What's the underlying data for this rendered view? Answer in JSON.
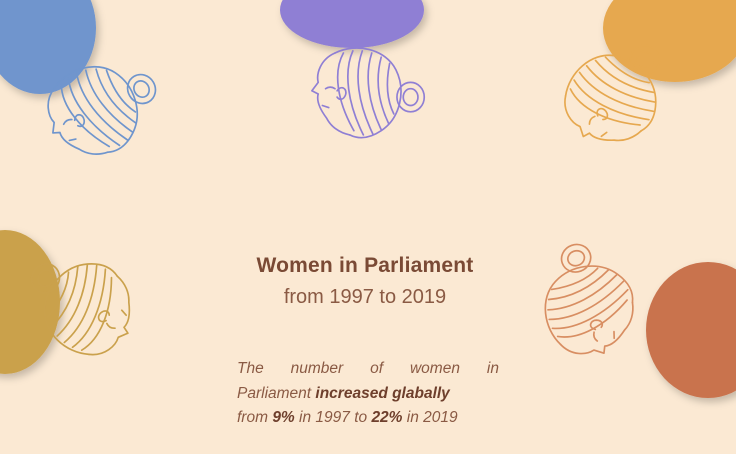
{
  "title": "Women in Parliament",
  "subtitle": "from 1997 to 2019",
  "description": {
    "line1_words": [
      "The",
      "number",
      "of",
      "women",
      "in"
    ],
    "line2_prefix": "Parliament",
    "line2_bold": "increased glabally",
    "line3_from": "from",
    "line3_value1": "9%",
    "line3_mid": "in 1997 to",
    "line3_value2": "22%",
    "line3_end": "in 2019"
  },
  "colors": {
    "background": "#fbe9d3",
    "blue": "#6f95cd",
    "purple": "#8f7fd4",
    "orange": "#e6a84f",
    "mustard": "#caa14c",
    "terracotta": "#c9734d",
    "text": "#7a4a35"
  },
  "figures": [
    "woman-head-blue-icon",
    "woman-head-purple-icon",
    "woman-head-orange-icon",
    "woman-head-mustard-icon",
    "woman-head-terracotta-icon"
  ]
}
